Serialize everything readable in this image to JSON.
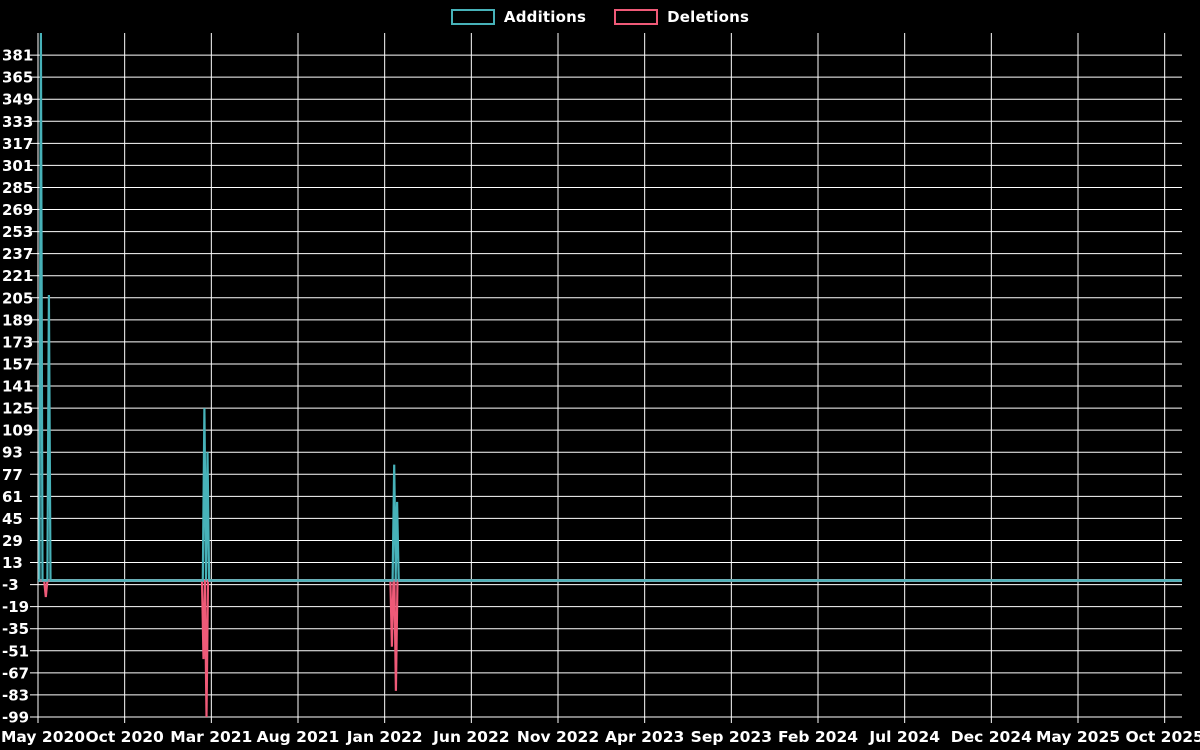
{
  "legend": [
    {
      "label": "Additions",
      "color": "#47b2b9"
    },
    {
      "label": "Deletions",
      "color": "#ef5a78"
    }
  ],
  "colors": {
    "background": "#000000",
    "grid": "#ffffff",
    "text": "#ffffff",
    "additions": "#47b2b9",
    "deletions": "#ef5a78",
    "zero_baseline": "#8fc0c4"
  },
  "chart_data": {
    "type": "line",
    "title": "",
    "xlabel": "",
    "ylabel": "",
    "grid": true,
    "legend_position": "top-center",
    "ylim": [
      -99,
      397
    ],
    "y_ticks": [
      381,
      365,
      349,
      333,
      317,
      301,
      285,
      269,
      253,
      237,
      221,
      205,
      189,
      173,
      157,
      141,
      125,
      109,
      93,
      77,
      61,
      45,
      29,
      13,
      -3,
      -19,
      -35,
      -51,
      -67,
      -83,
      -99
    ],
    "x_tick_labels": [
      "May 2020",
      "Oct 2020",
      "Mar 2021",
      "Aug 2021",
      "Jan 2022",
      "Jun 2022",
      "Nov 2022",
      "Apr 2023",
      "Sep 2023",
      "Feb 2024",
      "Jul 2024",
      "Dec 2024",
      "May 2025",
      "Oct 2025"
    ],
    "x_tick_months": [
      0,
      5,
      10,
      15,
      20,
      25,
      30,
      35,
      40,
      45,
      50,
      55,
      60,
      65
    ],
    "x_domain_months": [
      0,
      66
    ],
    "baseline_value": 0,
    "series": [
      {
        "name": "Additions",
        "color": "#47b2b9",
        "baseline": 0,
        "spikes": [
          {
            "month": 0.17,
            "value": 397
          },
          {
            "month": 0.63,
            "value": 207
          },
          {
            "month": 9.6,
            "value": 125
          },
          {
            "month": 9.78,
            "value": 93
          },
          {
            "month": 20.55,
            "value": 84
          },
          {
            "month": 20.72,
            "value": 57
          }
        ]
      },
      {
        "name": "Deletions",
        "color": "#ef5a78",
        "baseline": 0,
        "spikes": [
          {
            "month": 0.45,
            "value": -12
          },
          {
            "month": 9.55,
            "value": -57
          },
          {
            "month": 9.72,
            "value": -99
          },
          {
            "month": 20.42,
            "value": -48
          },
          {
            "month": 20.65,
            "value": -80
          }
        ]
      }
    ]
  }
}
